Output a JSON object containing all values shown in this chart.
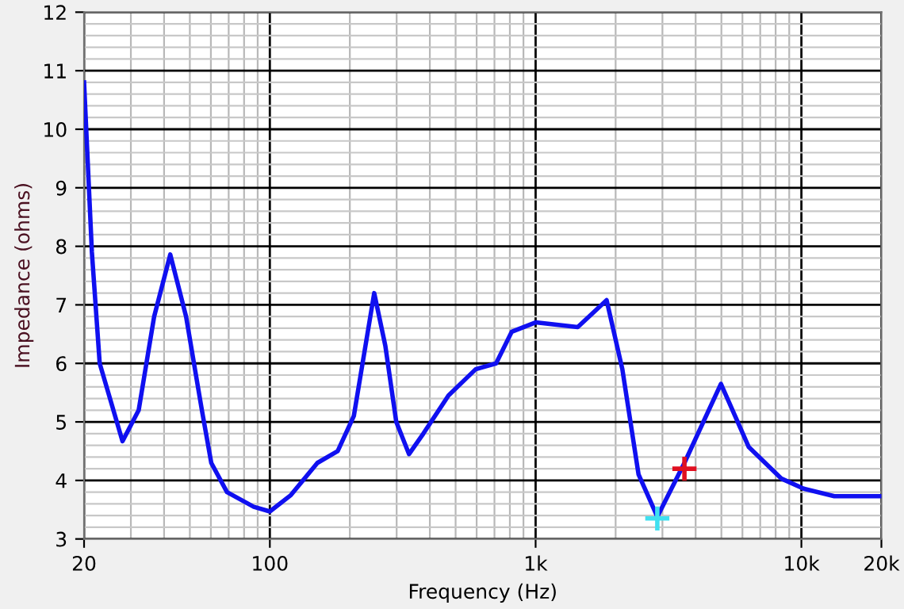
{
  "chart_data": {
    "type": "line",
    "xlabel": "Frequency (Hz)",
    "ylabel": "Impedance (ohms)",
    "log": "x",
    "grid": true,
    "legend": false,
    "marker": "none",
    "line_style": "solid",
    "xlim": [
      20,
      20000
    ],
    "ylim": [
      3,
      12
    ],
    "xticks": [
      20,
      {
        "value": 30,
        "label": null
      },
      {
        "value": 40,
        "label": null
      },
      {
        "value": 50,
        "label": null
      },
      {
        "value": 60,
        "label": null
      },
      {
        "value": 70,
        "label": null
      },
      {
        "value": 80,
        "label": null
      },
      {
        "value": 90,
        "label": null
      },
      100,
      {
        "value": 200,
        "label": null
      },
      {
        "value": 300,
        "label": null
      },
      {
        "value": 400,
        "label": null
      },
      {
        "value": 500,
        "label": null
      },
      {
        "value": 600,
        "label": null
      },
      {
        "value": 700,
        "label": null
      },
      {
        "value": 800,
        "label": null
      },
      {
        "value": 900,
        "label": null
      },
      {
        "value": 1000,
        "label": "1k"
      },
      {
        "value": 2000,
        "label": null
      },
      {
        "value": 3000,
        "label": null
      },
      {
        "value": 4000,
        "label": null
      },
      {
        "value": 5000,
        "label": null
      },
      {
        "value": 6000,
        "label": null
      },
      {
        "value": 7000,
        "label": null
      },
      {
        "value": 8000,
        "label": null
      },
      {
        "value": 9000,
        "label": null
      },
      {
        "value": 10000,
        "label": "10k"
      },
      {
        "value": 20000,
        "label": "20k"
      }
    ],
    "yticks": [
      3,
      {
        "value": 3.2,
        "label": null
      },
      {
        "value": 3.4,
        "label": null
      },
      {
        "value": 3.6,
        "label": null
      },
      {
        "value": 3.8,
        "label": null
      },
      4,
      {
        "value": 4.2,
        "label": null
      },
      {
        "value": 4.4,
        "label": null
      },
      {
        "value": 4.6,
        "label": null
      },
      {
        "value": 4.8,
        "label": null
      },
      5,
      {
        "value": 5.2,
        "label": null
      },
      {
        "value": 5.4,
        "label": null
      },
      {
        "value": 5.6,
        "label": null
      },
      {
        "value": 5.8,
        "label": null
      },
      6,
      {
        "value": 6.2,
        "label": null
      },
      {
        "value": 6.4,
        "label": null
      },
      {
        "value": 6.6,
        "label": null
      },
      {
        "value": 6.8,
        "label": null
      },
      7,
      {
        "value": 7.2,
        "label": null
      },
      {
        "value": 7.4,
        "label": null
      },
      {
        "value": 7.6,
        "label": null
      },
      {
        "value": 7.8,
        "label": null
      },
      8,
      {
        "value": 8.2,
        "label": null
      },
      {
        "value": 8.4,
        "label": null
      },
      {
        "value": 8.6,
        "label": null
      },
      {
        "value": 8.8,
        "label": null
      },
      9,
      {
        "value": 9.2,
        "label": null
      },
      {
        "value": 9.4,
        "label": null
      },
      {
        "value": 9.6,
        "label": null
      },
      {
        "value": 9.8,
        "label": null
      },
      10,
      {
        "value": 10.2,
        "label": null
      },
      {
        "value": 10.4,
        "label": null
      },
      {
        "value": 10.6,
        "label": null
      },
      {
        "value": 10.8,
        "label": null
      },
      11,
      {
        "value": 11.2,
        "label": null
      },
      {
        "value": 11.4,
        "label": null
      },
      {
        "value": 11.6,
        "label": null
      },
      {
        "value": 11.8,
        "label": null
      },
      12
    ],
    "series": [
      {
        "color": "#1010f0",
        "x": [
          20,
          21.4,
          22.9,
          27.9,
          32.1,
          36.7,
          42.2,
          48.4,
          55.5,
          60.2,
          69,
          87,
          100,
          120,
          151,
          180,
          207,
          247,
          272,
          299,
          334,
          378,
          470,
          595,
          710,
          813,
          1000,
          1440,
          1850,
          2120,
          2440,
          2870,
          3630,
          4980,
          6340,
          8420,
          10200,
          13300,
          20000
        ],
        "values": [
          10.8,
          7.9,
          6.0,
          4.67,
          5.2,
          6.8,
          7.86,
          6.8,
          5.2,
          4.3,
          3.8,
          3.55,
          3.47,
          3.75,
          4.3,
          4.5,
          5.1,
          7.2,
          6.3,
          5.0,
          4.45,
          4.8,
          5.45,
          5.9,
          6.0,
          6.54,
          6.7,
          6.62,
          7.08,
          5.9,
          4.1,
          3.38,
          4.3,
          5.65,
          4.57,
          4.03,
          3.86,
          3.73,
          3.73
        ]
      },
      {
        "type": "scatter",
        "marker": "cross",
        "x": [
          2870,
          3630
        ],
        "values": [
          3.35,
          4.2
        ],
        "colors": [
          "#40e0f0",
          "#e01020"
        ]
      }
    ]
  }
}
